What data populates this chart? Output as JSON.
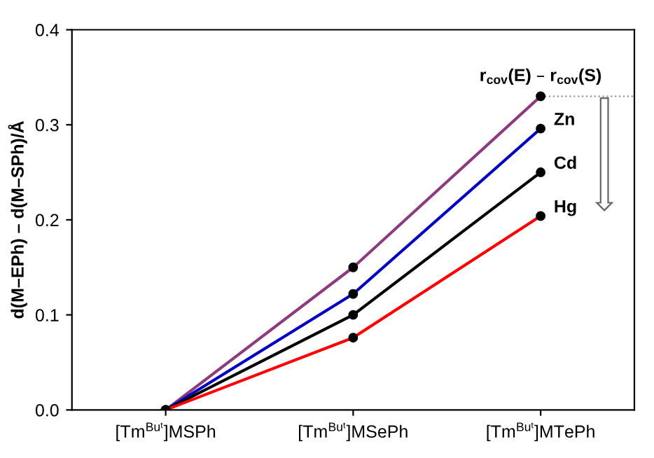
{
  "chart_data": {
    "type": "line",
    "ylabel": "d(M–EPh) – d(M–SPh)/Å",
    "categories": [
      "[Tm$^{Buᵗ}$]MSPh",
      "[Tm$^{Buᵗ}$]MSePh",
      "[Tm$^{Buᵗ}$]MTePh"
    ],
    "series": [
      {
        "name": "r$_{cov}$(E) – r$_{cov}$(S)",
        "color": "#8e3a7e",
        "values": [
          0,
          0.15,
          0.33
        ]
      },
      {
        "name": "Zn",
        "color": "#0000c0",
        "values": [
          0,
          0.122,
          0.296
        ]
      },
      {
        "name": "Cd",
        "color": "#000000",
        "values": [
          0,
          0.1,
          0.25
        ]
      },
      {
        "name": "Hg",
        "color": "#ff0000",
        "values": [
          0,
          0.076,
          0.204
        ]
      }
    ],
    "ylim": [
      0,
      0.4
    ],
    "yticks": [
      {
        "value": 0,
        "label": "0.0"
      },
      0.1,
      0.2,
      0.3,
      0.4
    ],
    "ref_lines": [
      {
        "axis": "y",
        "value": 0.33,
        "line_style": "dotted",
        "color": "#888888"
      }
    ],
    "marker": "circle",
    "grid": false,
    "legend": false
  }
}
